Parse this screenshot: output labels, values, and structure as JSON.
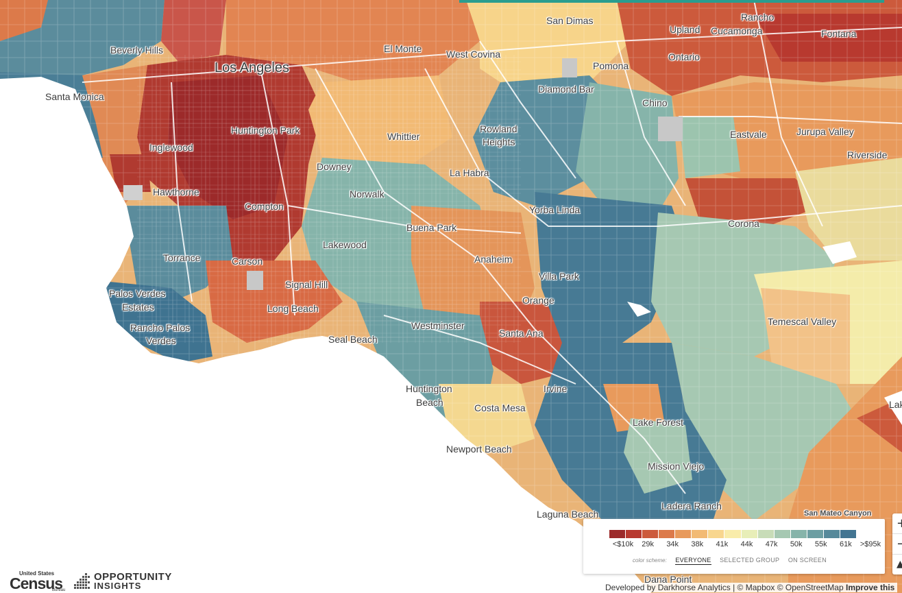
{
  "map": {
    "places": [
      {
        "name": "Beverly Hills",
        "size": "normal"
      },
      {
        "name": "Los Angeles",
        "size": "big"
      },
      {
        "name": "Santa Monica",
        "size": "normal"
      },
      {
        "name": "El Monte",
        "size": "normal"
      },
      {
        "name": "West Covina",
        "size": "normal"
      },
      {
        "name": "San Dimas",
        "size": "normal"
      },
      {
        "name": "Upland",
        "size": "normal"
      },
      {
        "name": "Rancho",
        "size": "normal"
      },
      {
        "name": "Cucamonga",
        "size": "normal"
      },
      {
        "name": "Fontana",
        "size": "normal"
      },
      {
        "name": "Ontario",
        "size": "normal"
      },
      {
        "name": "Pomona",
        "size": "normal"
      },
      {
        "name": "Diamond Bar",
        "size": "normal"
      },
      {
        "name": "Chino",
        "size": "normal"
      },
      {
        "name": "Huntington Park",
        "size": "normal"
      },
      {
        "name": "Inglewood",
        "size": "normal"
      },
      {
        "name": "Whittier",
        "size": "normal"
      },
      {
        "name": "Rowland",
        "size": "normal"
      },
      {
        "name": "Heights",
        "size": "normal"
      },
      {
        "name": "Eastvale",
        "size": "normal"
      },
      {
        "name": "Jurupa Valley",
        "size": "normal"
      },
      {
        "name": "Riverside",
        "size": "normal"
      },
      {
        "name": "Downey",
        "size": "normal"
      },
      {
        "name": "La Habra",
        "size": "normal"
      },
      {
        "name": "Hawthorne",
        "size": "normal"
      },
      {
        "name": "Norwalk",
        "size": "normal"
      },
      {
        "name": "Compton",
        "size": "normal"
      },
      {
        "name": "Yorba Linda",
        "size": "normal"
      },
      {
        "name": "Corona",
        "size": "normal"
      },
      {
        "name": "Buena Park",
        "size": "normal"
      },
      {
        "name": "Lakewood",
        "size": "normal"
      },
      {
        "name": "Torrance",
        "size": "normal"
      },
      {
        "name": "Carson",
        "size": "normal"
      },
      {
        "name": "Anaheim",
        "size": "normal"
      },
      {
        "name": "Villa Park",
        "size": "normal"
      },
      {
        "name": "Signal Hill",
        "size": "normal"
      },
      {
        "name": "Palos Verdes",
        "size": "normal"
      },
      {
        "name": "Estates",
        "size": "normal"
      },
      {
        "name": "Long Beach",
        "size": "normal"
      },
      {
        "name": "Orange",
        "size": "normal"
      },
      {
        "name": "Temescal Valley",
        "size": "normal"
      },
      {
        "name": "Rancho Palos",
        "size": "normal"
      },
      {
        "name": "Verdes",
        "size": "normal"
      },
      {
        "name": "Westminster",
        "size": "normal"
      },
      {
        "name": "Santa Ana",
        "size": "normal"
      },
      {
        "name": "Seal Beach",
        "size": "normal"
      },
      {
        "name": "Irvine",
        "size": "normal"
      },
      {
        "name": "Huntington",
        "size": "normal"
      },
      {
        "name": "Beach",
        "size": "normal"
      },
      {
        "name": "Costa Mesa",
        "size": "normal"
      },
      {
        "name": "Lake Forest",
        "size": "normal"
      },
      {
        "name": "Newport Beach",
        "size": "normal"
      },
      {
        "name": "Mission Viejo",
        "size": "normal"
      },
      {
        "name": "Ladera Ranch",
        "size": "normal"
      },
      {
        "name": "Laguna Beach",
        "size": "normal"
      },
      {
        "name": "San Mateo Canyon",
        "size": "small"
      },
      {
        "name": "Dana Point",
        "size": "normal"
      },
      {
        "name": "Lak",
        "size": "normal"
      }
    ]
  },
  "legend": {
    "colors": [
      "#9c2a2a",
      "#b8392f",
      "#cc5a3c",
      "#dc7a4a",
      "#e89a5c",
      "#f2ba74",
      "#f8d68e",
      "#f9ecaa",
      "#e8eeb8",
      "#c8dcb8",
      "#a6c8b2",
      "#86b4aa",
      "#6c9ea2",
      "#56899a",
      "#437592"
    ],
    "ticks": [
      "<$10k",
      "29k",
      "34k",
      "38k",
      "41k",
      "44k",
      "47k",
      "50k",
      "55k",
      "61k",
      ">$95k"
    ],
    "scheme_label": "color scheme:",
    "schemes": [
      {
        "label": "EVERYONE",
        "active": true
      },
      {
        "label": "SELECTED GROUP",
        "active": false
      },
      {
        "label": "ON SCREEN",
        "active": false
      }
    ]
  },
  "zoom": {
    "in": "+",
    "out": "−"
  },
  "attribution": {
    "text": "Developed by Darkhorse Analytics | © Mapbox © OpenStreetMap",
    "improve": "Improve this"
  },
  "logos": {
    "census_top": "United States",
    "census_name": "Census",
    "census_bureau": "Bureau",
    "oi_line1": "OPPORTUNITY",
    "oi_line2": "INSIGHTS"
  }
}
